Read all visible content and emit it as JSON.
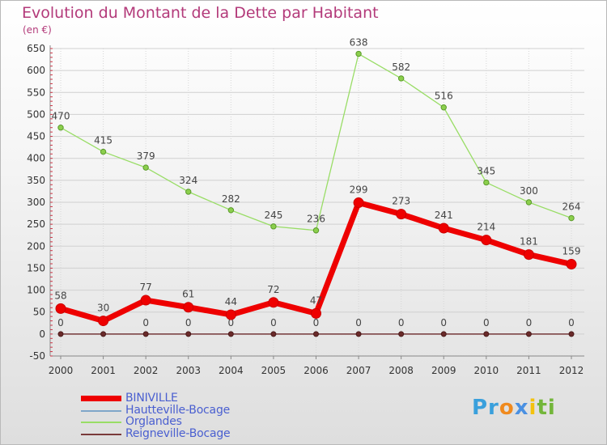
{
  "chart_data": {
    "type": "line",
    "title": "Evolution du Montant de la Dette par Habitant",
    "subtitle": "(en €)",
    "xlabel": "",
    "ylabel": "",
    "x": [
      "2000",
      "2001",
      "2002",
      "2003",
      "2004",
      "2005",
      "2006",
      "2007",
      "2008",
      "2009",
      "2010",
      "2011",
      "2012"
    ],
    "ylim": [
      -50,
      650
    ],
    "yticks": [
      -50,
      0,
      50,
      100,
      150,
      200,
      250,
      300,
      350,
      400,
      450,
      500,
      550,
      600,
      650
    ],
    "legend_position": "bottom-left",
    "series": [
      {
        "name": "BINIVILLE",
        "color": "#ee0000",
        "values": [
          58,
          30,
          77,
          61,
          44,
          72,
          47,
          299,
          273,
          241,
          214,
          181,
          159
        ]
      },
      {
        "name": "Hautteville-Bocage",
        "color": "#7fa6c9",
        "values": [
          0,
          0,
          0,
          0,
          0,
          0,
          0,
          0,
          0,
          0,
          0,
          0,
          0
        ]
      },
      {
        "name": "Orglandes",
        "color": "#99dd66",
        "values": [
          470,
          415,
          379,
          324,
          282,
          245,
          236,
          638,
          582,
          516,
          345,
          300,
          264
        ]
      },
      {
        "name": "Reigneville-Bocage",
        "color": "#7a3a3a",
        "values": [
          0,
          0,
          0,
          0,
          0,
          0,
          0,
          0,
          0,
          0,
          0,
          0,
          0
        ]
      }
    ]
  },
  "logo": {
    "p": "Pr",
    "o": "o",
    "x": "x",
    "i": "i",
    "ti": "ti"
  }
}
